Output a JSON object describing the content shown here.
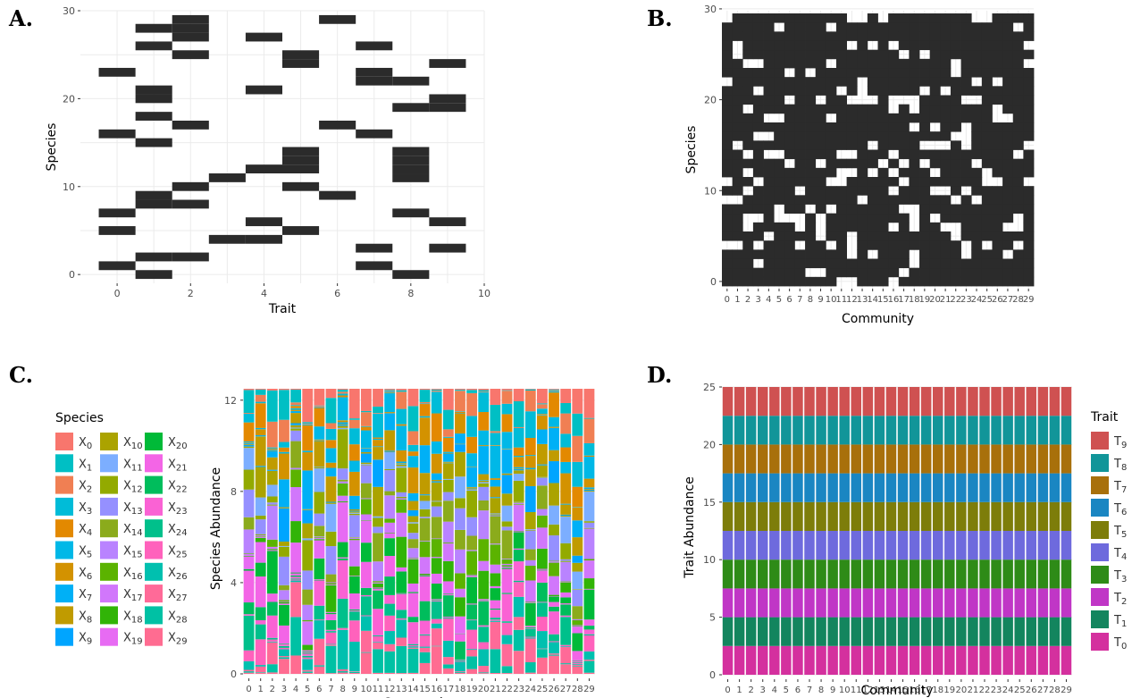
{
  "panels": {
    "a_letter": "A.",
    "b_letter": "B.",
    "c_letter": "C.",
    "d_letter": "D."
  },
  "colors": {
    "cell_fill": "#2b2b2b",
    "grid": "#ebebeb",
    "axis_text": "#4d4d4d"
  },
  "chart_data": [
    {
      "panel": "A",
      "type": "heatmap",
      "xlabel": "Trait",
      "ylabel": "Species",
      "xlim": [
        -1,
        10
      ],
      "ylim": [
        -1,
        30
      ],
      "x_ticks": [
        0,
        2,
        4,
        6,
        8,
        10
      ],
      "y_ticks": [
        0,
        10,
        20,
        30
      ],
      "cells": [
        [
          1,
          0
        ],
        [
          8,
          0
        ],
        [
          0,
          1
        ],
        [
          7,
          1
        ],
        [
          1,
          2
        ],
        [
          2,
          2
        ],
        [
          7,
          3
        ],
        [
          9,
          3
        ],
        [
          3,
          4
        ],
        [
          4,
          4
        ],
        [
          0,
          5
        ],
        [
          5,
          5
        ],
        [
          4,
          6
        ],
        [
          9,
          6
        ],
        [
          0,
          7
        ],
        [
          8,
          7
        ],
        [
          1,
          8
        ],
        [
          2,
          8
        ],
        [
          1,
          9
        ],
        [
          6,
          9
        ],
        [
          2,
          10
        ],
        [
          5,
          10
        ],
        [
          3,
          11
        ],
        [
          8,
          11
        ],
        [
          4,
          12
        ],
        [
          5,
          12
        ],
        [
          8,
          12
        ],
        [
          5,
          13
        ],
        [
          8,
          13
        ],
        [
          5,
          14
        ],
        [
          8,
          14
        ],
        [
          1,
          15
        ],
        [
          0,
          16
        ],
        [
          7,
          16
        ],
        [
          2,
          17
        ],
        [
          6,
          17
        ],
        [
          1,
          18
        ],
        [
          8,
          19
        ],
        [
          9,
          19
        ],
        [
          1,
          20
        ],
        [
          9,
          20
        ],
        [
          1,
          21
        ],
        [
          4,
          21
        ],
        [
          7,
          22
        ],
        [
          8,
          22
        ],
        [
          0,
          23
        ],
        [
          7,
          23
        ],
        [
          5,
          24
        ],
        [
          9,
          24
        ],
        [
          2,
          25
        ],
        [
          5,
          25
        ],
        [
          1,
          26
        ],
        [
          7,
          26
        ],
        [
          2,
          27
        ],
        [
          4,
          27
        ],
        [
          1,
          28
        ],
        [
          2,
          28
        ],
        [
          2,
          29
        ],
        [
          6,
          29
        ]
      ]
    },
    {
      "panel": "B",
      "type": "heatmap",
      "xlabel": "Community",
      "ylabel": "Species",
      "y_ticks": [
        0,
        10,
        20,
        30
      ],
      "x_tick_labels": [
        "0",
        "1",
        "2",
        "3",
        "4",
        "5",
        "6",
        "7",
        "8",
        "9",
        "10",
        "11",
        "12",
        "13",
        "14",
        "15",
        "16",
        "17",
        "18",
        "19",
        "20",
        "21",
        "22",
        "23",
        "24",
        "25",
        "26",
        "27",
        "28",
        "29"
      ],
      "n_communities": 30,
      "n_species": 30,
      "presence_fraction": 0.82
    },
    {
      "panel": "C",
      "type": "bar",
      "stacked": true,
      "xlabel": "Community",
      "ylabel": "Species Abundance",
      "ylim": [
        0,
        12.5
      ],
      "y_ticks": [
        0,
        4,
        8,
        12
      ],
      "categories": [
        "0",
        "1",
        "2",
        "3",
        "4",
        "5",
        "6",
        "7",
        "8",
        "9",
        "10",
        "11",
        "12",
        "13",
        "14",
        "15",
        "16",
        "17",
        "18",
        "19",
        "20",
        "21",
        "22",
        "23",
        "24",
        "25",
        "26",
        "27",
        "28",
        "29"
      ],
      "total_per_community": 12.5,
      "legend_title": "Species",
      "legend_position": "left",
      "series": [
        {
          "name": "X0",
          "sym": "X",
          "sub": "0",
          "color": "#F8766D"
        },
        {
          "name": "X1",
          "sym": "X",
          "sub": "1",
          "color": "#00BFC4"
        },
        {
          "name": "X2",
          "sym": "X",
          "sub": "2",
          "color": "#F07F53"
        },
        {
          "name": "X3",
          "sym": "X",
          "sub": "3",
          "color": "#00BCD8"
        },
        {
          "name": "X4",
          "sym": "X",
          "sub": "4",
          "color": "#E38900"
        },
        {
          "name": "X5",
          "sym": "X",
          "sub": "5",
          "color": "#00B8E7"
        },
        {
          "name": "X6",
          "sym": "X",
          "sub": "6",
          "color": "#D39200"
        },
        {
          "name": "X7",
          "sym": "X",
          "sub": "7",
          "color": "#00B0F6"
        },
        {
          "name": "X8",
          "sym": "X",
          "sub": "8",
          "color": "#C09B00"
        },
        {
          "name": "X9",
          "sym": "X",
          "sub": "9",
          "color": "#00A5FF"
        },
        {
          "name": "X10",
          "sym": "X",
          "sub": "10",
          "color": "#ABA300"
        },
        {
          "name": "X11",
          "sym": "X",
          "sub": "11",
          "color": "#7CAEFF"
        },
        {
          "name": "X12",
          "sym": "X",
          "sub": "12",
          "color": "#93AA00"
        },
        {
          "name": "X13",
          "sym": "X",
          "sub": "13",
          "color": "#9590FF"
        },
        {
          "name": "X14",
          "sym": "X",
          "sub": "14",
          "color": "#8BAB1C"
        },
        {
          "name": "X15",
          "sym": "X",
          "sub": "15",
          "color": "#B983FF"
        },
        {
          "name": "X16",
          "sym": "X",
          "sub": "16",
          "color": "#5BB300"
        },
        {
          "name": "X17",
          "sym": "X",
          "sub": "17",
          "color": "#D177FB"
        },
        {
          "name": "X18",
          "sym": "X",
          "sub": "18",
          "color": "#31B407"
        },
        {
          "name": "X19",
          "sym": "X",
          "sub": "19",
          "color": "#E76BF3"
        },
        {
          "name": "X20",
          "sym": "X",
          "sub": "20",
          "color": "#00BA38"
        },
        {
          "name": "X21",
          "sym": "X",
          "sub": "21",
          "color": "#F365E6"
        },
        {
          "name": "X22",
          "sym": "X",
          "sub": "22",
          "color": "#00BD5C"
        },
        {
          "name": "X23",
          "sym": "X",
          "sub": "23",
          "color": "#FA62D4"
        },
        {
          "name": "X24",
          "sym": "X",
          "sub": "24",
          "color": "#00C08B"
        },
        {
          "name": "X25",
          "sym": "X",
          "sub": "25",
          "color": "#FF62BC"
        },
        {
          "name": "X26",
          "sym": "X",
          "sub": "26",
          "color": "#00C0AF"
        },
        {
          "name": "X27",
          "sym": "X",
          "sub": "27",
          "color": "#FF6A98"
        },
        {
          "name": "X28",
          "sym": "X",
          "sub": "28",
          "color": "#00C1A4"
        },
        {
          "name": "X29",
          "sym": "X",
          "sub": "29",
          "color": "#FF6C91"
        }
      ]
    },
    {
      "panel": "D",
      "type": "bar",
      "stacked": true,
      "xlabel": "Community",
      "ylabel": "Trait Abundance",
      "ylim": [
        0,
        25
      ],
      "y_ticks": [
        0,
        5,
        10,
        15,
        20,
        25
      ],
      "categories": [
        "0",
        "1",
        "2",
        "3",
        "4",
        "5",
        "6",
        "7",
        "8",
        "9",
        "10",
        "11",
        "12",
        "13",
        "14",
        "15",
        "16",
        "17",
        "18",
        "19",
        "20",
        "21",
        "22",
        "23",
        "24",
        "25",
        "26",
        "27",
        "28",
        "29"
      ],
      "value_per_trait": 2.5,
      "legend_title": "Trait",
      "legend_position": "right",
      "series": [
        {
          "name": "T0",
          "sym": "T",
          "sub": "0",
          "color": "#D4309E"
        },
        {
          "name": "T1",
          "sym": "T",
          "sub": "1",
          "color": "#13855E"
        },
        {
          "name": "T2",
          "sym": "T",
          "sub": "2",
          "color": "#C036C6"
        },
        {
          "name": "T3",
          "sym": "T",
          "sub": "3",
          "color": "#2E8B17"
        },
        {
          "name": "T4",
          "sym": "T",
          "sub": "4",
          "color": "#6E6ADD"
        },
        {
          "name": "T5",
          "sym": "T",
          "sub": "5",
          "color": "#7D7D0A"
        },
        {
          "name": "T6",
          "sym": "T",
          "sub": "6",
          "color": "#1A86C2"
        },
        {
          "name": "T7",
          "sym": "T",
          "sub": "7",
          "color": "#A8700B"
        },
        {
          "name": "T8",
          "sym": "T",
          "sub": "8",
          "color": "#119599"
        },
        {
          "name": "T9",
          "sym": "T",
          "sub": "9",
          "color": "#CF5151"
        }
      ]
    }
  ]
}
